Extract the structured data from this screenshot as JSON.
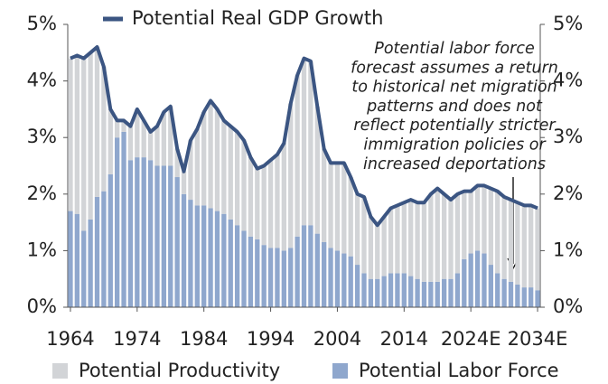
{
  "chart_data": {
    "type": "bar",
    "stacked": true,
    "x": [
      1964,
      1965,
      1966,
      1967,
      1968,
      1969,
      1970,
      1971,
      1972,
      1973,
      1974,
      1975,
      1976,
      1977,
      1978,
      1979,
      1980,
      1981,
      1982,
      1983,
      1984,
      1985,
      1986,
      1987,
      1988,
      1989,
      1990,
      1991,
      1992,
      1993,
      1994,
      1995,
      1996,
      1997,
      1998,
      1999,
      2000,
      2001,
      2002,
      2003,
      2004,
      2005,
      2006,
      2007,
      2008,
      2009,
      2010,
      2011,
      2012,
      2013,
      2014,
      2015,
      2016,
      2017,
      2018,
      2019,
      2020,
      2021,
      2022,
      2023,
      2024,
      2025,
      2026,
      2027,
      2028,
      2029,
      2030,
      2031,
      2032,
      2033,
      2034
    ],
    "series": [
      {
        "name": "Potential Labor Force",
        "color": "#8fa7cd",
        "values": [
          1.7,
          1.65,
          1.35,
          1.55,
          1.95,
          2.05,
          2.35,
          3.0,
          3.1,
          2.6,
          2.65,
          2.65,
          2.6,
          2.5,
          2.5,
          2.5,
          2.3,
          2.0,
          1.9,
          1.8,
          1.8,
          1.75,
          1.7,
          1.65,
          1.55,
          1.45,
          1.35,
          1.25,
          1.2,
          1.1,
          1.05,
          1.05,
          1.0,
          1.05,
          1.25,
          1.45,
          1.45,
          1.3,
          1.15,
          1.05,
          1.0,
          0.95,
          0.9,
          0.75,
          0.6,
          0.5,
          0.5,
          0.55,
          0.6,
          0.6,
          0.6,
          0.55,
          0.5,
          0.45,
          0.45,
          0.45,
          0.5,
          0.5,
          0.6,
          0.85,
          0.95,
          1.0,
          0.95,
          0.75,
          0.6,
          0.5,
          0.45,
          0.4,
          0.35,
          0.35,
          0.3
        ]
      },
      {
        "name": "Potential Productivity",
        "color": "#d2d4d7",
        "values": [
          2.7,
          2.8,
          3.05,
          2.95,
          2.65,
          2.2,
          1.15,
          0.3,
          0.2,
          0.6,
          0.85,
          0.65,
          0.5,
          0.7,
          0.95,
          1.05,
          0.5,
          0.4,
          1.05,
          1.35,
          1.65,
          1.9,
          1.8,
          1.65,
          1.65,
          1.65,
          1.6,
          1.4,
          1.25,
          1.4,
          1.55,
          1.65,
          1.9,
          2.55,
          2.85,
          2.95,
          2.9,
          2.25,
          1.65,
          1.5,
          1.55,
          1.6,
          1.4,
          1.25,
          1.35,
          1.1,
          0.95,
          1.05,
          1.15,
          1.2,
          1.25,
          1.35,
          1.35,
          1.4,
          1.55,
          1.65,
          1.5,
          1.4,
          1.4,
          1.2,
          1.1,
          1.15,
          1.2,
          1.35,
          1.45,
          1.45,
          1.45,
          1.45,
          1.45,
          1.45,
          1.45
        ]
      },
      {
        "name": "Potential Real GDP Growth",
        "type": "line",
        "color": "#3b5582",
        "values": [
          4.4,
          4.45,
          4.4,
          4.5,
          4.6,
          4.25,
          3.5,
          3.3,
          3.3,
          3.2,
          3.5,
          3.3,
          3.1,
          3.2,
          3.45,
          3.55,
          2.8,
          2.4,
          2.95,
          3.15,
          3.45,
          3.65,
          3.5,
          3.3,
          3.2,
          3.1,
          2.95,
          2.65,
          2.45,
          2.5,
          2.6,
          2.7,
          2.9,
          3.6,
          4.1,
          4.4,
          4.35,
          3.55,
          2.8,
          2.55,
          2.55,
          2.55,
          2.3,
          2.0,
          1.95,
          1.6,
          1.45,
          1.6,
          1.75,
          1.8,
          1.85,
          1.9,
          1.85,
          1.85,
          2.0,
          2.1,
          2.0,
          1.9,
          2.0,
          2.05,
          2.05,
          2.15,
          2.15,
          2.1,
          2.05,
          1.95,
          1.9,
          1.85,
          1.8,
          1.8,
          1.75
        ]
      }
    ],
    "xlim": [
      1963.6,
      2034.4
    ],
    "xticks": [
      1964,
      1974,
      1984,
      1994,
      2004,
      2014,
      {
        "value": 2024,
        "label": "2024E"
      },
      {
        "value": 2034,
        "label": "2034E"
      }
    ],
    "ylim": [
      0,
      5
    ],
    "yticks": [
      {
        "value": 0,
        "label": "0%"
      },
      {
        "value": 1,
        "label": "1%"
      },
      {
        "value": 2,
        "label": "2%"
      },
      {
        "value": 3,
        "label": "3%"
      },
      {
        "value": 4,
        "label": "4%"
      },
      {
        "value": 5,
        "label": "5%"
      }
    ],
    "y2lim": [
      0,
      5
    ],
    "y2ticks": [
      {
        "value": 0,
        "label": "0%"
      },
      {
        "value": 1,
        "label": "1%"
      },
      {
        "value": 2,
        "label": "2%"
      },
      {
        "value": 3,
        "label": "3%"
      },
      {
        "value": 4,
        "label": "4%"
      },
      {
        "value": 5,
        "label": "5%"
      }
    ],
    "annotation": [
      "Potential labor force",
      "forecast assumes a return",
      "to historical net migration",
      "patterns and does not",
      "reflect potentially stricter",
      "immigration policies or",
      "increased deportations"
    ],
    "grid": false
  }
}
